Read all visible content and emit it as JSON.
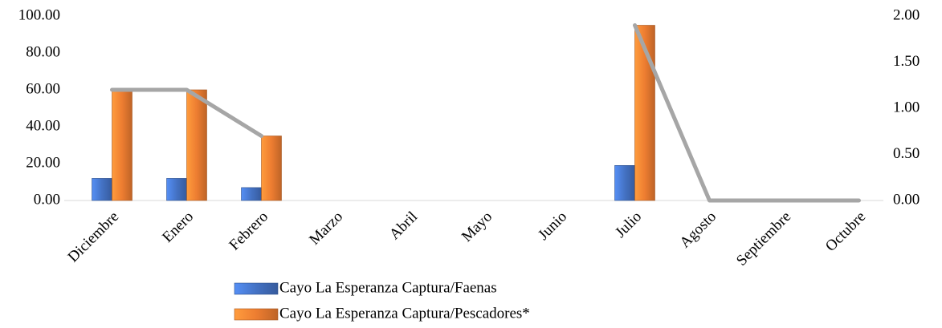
{
  "chart_data": {
    "type": "bar",
    "categories": [
      "Diciembre",
      "Enero",
      "Febrero",
      "Marzo",
      "Abril",
      "Mayo",
      "Junio",
      "Julio",
      "Agosto",
      "Septiembre",
      "Octubre"
    ],
    "series": [
      {
        "name": "Cayo La Esperanza Captura/Faenas",
        "color": "#4472c4",
        "type": "bar",
        "values": [
          12,
          12,
          7,
          0,
          0,
          0,
          0,
          19,
          0,
          0,
          0
        ]
      },
      {
        "name": "Cayo La Esperanza Captura/Pescadores*",
        "color": "#ed7d31",
        "type": "bar",
        "values": [
          60,
          60,
          35,
          0,
          0,
          0,
          0,
          95,
          0,
          0,
          0
        ]
      },
      {
        "color": "#a6a6a6",
        "type": "line",
        "axis": "y2",
        "values": [
          1.2,
          1.2,
          0.7,
          null,
          null,
          null,
          null,
          1.9,
          0,
          0,
          0
        ]
      }
    ],
    "ylim": [
      0,
      100
    ],
    "yticks": [
      {
        "value": 0,
        "label": "0.00"
      },
      {
        "value": 20,
        "label": "20.00"
      },
      {
        "value": 40,
        "label": "40.00"
      },
      {
        "value": 60,
        "label": "60.00"
      },
      {
        "value": 80,
        "label": "80.00"
      },
      {
        "value": 100,
        "label": "100.00"
      }
    ],
    "y2lim": [
      0,
      2
    ],
    "y2ticks": [
      {
        "value": 0,
        "label": "0.00"
      },
      {
        "value": 0.5,
        "label": "0.50"
      },
      {
        "value": 1,
        "label": "1.00"
      },
      {
        "value": 1.5,
        "label": "1.50"
      },
      {
        "value": 2,
        "label": "2.00"
      }
    ],
    "grid": false,
    "legend": "bottom"
  }
}
